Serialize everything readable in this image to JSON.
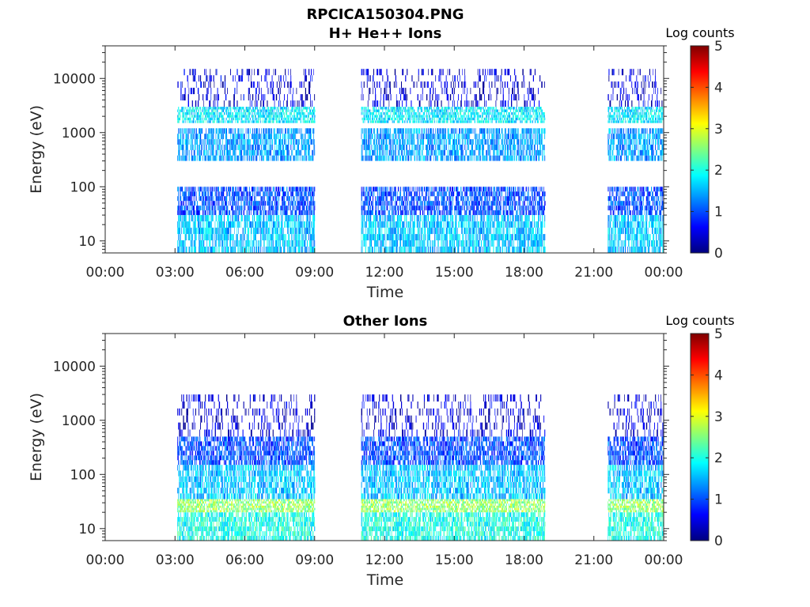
{
  "figure": {
    "title": "RPCICA150304.PNG"
  },
  "chart_data": [
    {
      "type": "heatmap",
      "title": "H+ He++ Ions",
      "xlabel": "Time",
      "ylabel": "Energy (eV)",
      "x_ticks": [
        "00:00",
        "03:00",
        "06:00",
        "09:00",
        "12:00",
        "15:00",
        "18:00",
        "21:00",
        "00:00"
      ],
      "xlim_hours": [
        0,
        24
      ],
      "y_scale": "log",
      "ylim": [
        6,
        40000
      ],
      "y_ticks": [
        10,
        100,
        1000,
        10000
      ],
      "y_tick_labels": [
        "10",
        "100",
        "1000",
        "10000"
      ],
      "colorbar": {
        "label": "Log counts",
        "range": [
          0,
          5
        ],
        "ticks": [
          "0",
          "1",
          "2",
          "3",
          "4",
          "5"
        ],
        "colormap": "jet"
      },
      "data_intervals_hours": [
        [
          3.1,
          9.0
        ],
        [
          11.0,
          18.9
        ],
        [
          21.6,
          24.0
        ]
      ],
      "bands": [
        {
          "e_min": 6,
          "e_max": 30,
          "level": 1.6
        },
        {
          "e_min": 30,
          "e_max": 100,
          "level": 1.0
        },
        {
          "e_min": 300,
          "e_max": 1200,
          "level": 1.4
        },
        {
          "e_min": 1500,
          "e_max": 3000,
          "level": 1.8
        },
        {
          "e_min": 3000,
          "e_max": 15000,
          "level": 0.4
        }
      ]
    },
    {
      "type": "heatmap",
      "title": "Other Ions",
      "xlabel": "Time",
      "ylabel": "Energy (eV)",
      "x_ticks": [
        "00:00",
        "03:00",
        "06:00",
        "09:00",
        "12:00",
        "15:00",
        "18:00",
        "21:00",
        "00:00"
      ],
      "xlim_hours": [
        0,
        24
      ],
      "y_scale": "log",
      "ylim": [
        6,
        40000
      ],
      "y_ticks": [
        10,
        100,
        1000,
        10000
      ],
      "y_tick_labels": [
        "10",
        "100",
        "1000",
        "10000"
      ],
      "colorbar": {
        "label": "Log counts",
        "range": [
          0,
          5
        ],
        "ticks": [
          "0",
          "1",
          "2",
          "3",
          "4",
          "5"
        ],
        "colormap": "jet"
      },
      "data_intervals_hours": [
        [
          3.1,
          9.0
        ],
        [
          11.0,
          18.9
        ],
        [
          21.6,
          24.0
        ]
      ],
      "bands": [
        {
          "e_min": 6,
          "e_max": 20,
          "level": 2.0
        },
        {
          "e_min": 20,
          "e_max": 35,
          "level": 2.6
        },
        {
          "e_min": 35,
          "e_max": 150,
          "level": 1.6
        },
        {
          "e_min": 150,
          "e_max": 500,
          "level": 1.0
        },
        {
          "e_min": 500,
          "e_max": 3000,
          "level": 0.4
        }
      ]
    }
  ]
}
